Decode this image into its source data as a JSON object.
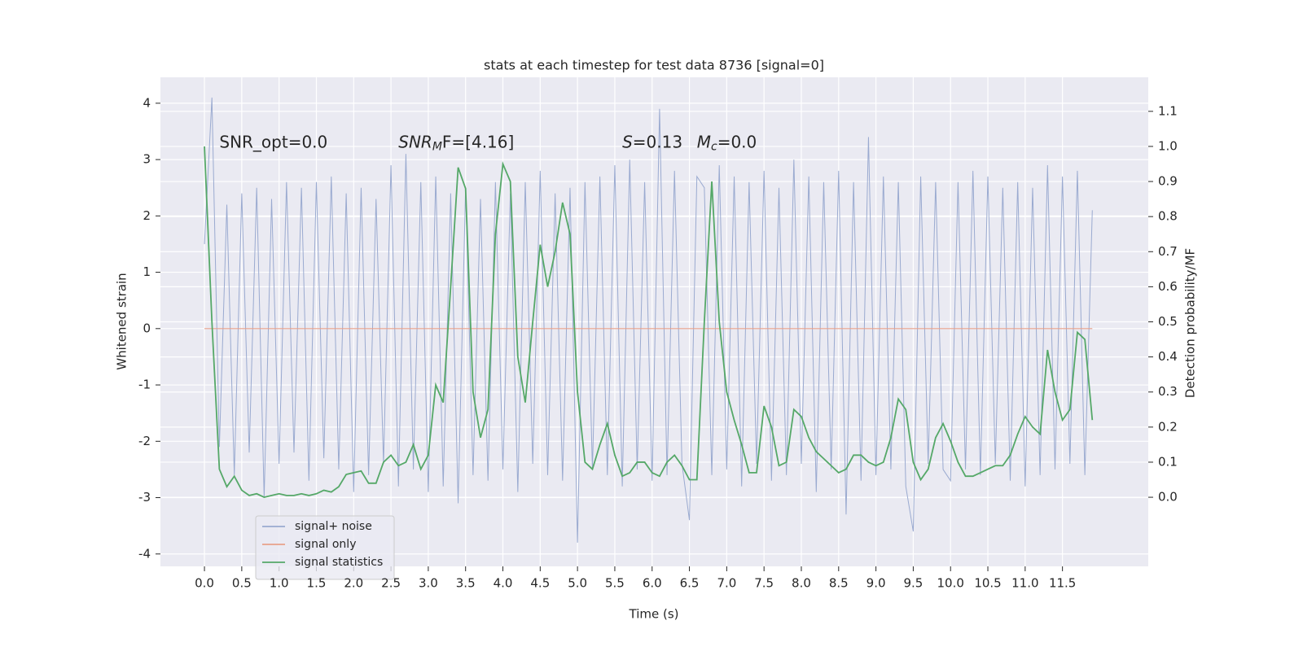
{
  "chart_data": {
    "type": "line",
    "title": "stats at each timestep for test data 8736 [signal=0]",
    "xlabel": "Time (s)",
    "ylabel": "Whitened strain",
    "y2label": "Detection probability/MF",
    "xlim": [
      -0.59,
      12.65
    ],
    "ylim": [
      -4.22,
      4.46
    ],
    "y2lim": [
      -0.197,
      1.197
    ],
    "xticks": [
      {
        "value": 0,
        "label": "0.0"
      },
      0.5,
      {
        "value": 1,
        "label": "1.0"
      },
      1.5,
      {
        "value": 2,
        "label": "2.0"
      },
      2.5,
      {
        "value": 3,
        "label": "3.0"
      },
      3.5,
      {
        "value": 4,
        "label": "4.0"
      },
      4.5,
      {
        "value": 5,
        "label": "5.0"
      },
      5.5,
      {
        "value": 6,
        "label": "6.0"
      },
      6.5,
      {
        "value": 7,
        "label": "7.0"
      },
      7.5,
      {
        "value": 8,
        "label": "8.0"
      },
      8.5,
      {
        "value": 9,
        "label": "9.0"
      },
      9.5,
      {
        "value": 10,
        "label": "10.0"
      },
      10.5,
      {
        "value": 11,
        "label": "11.0"
      },
      11.5
    ],
    "yticks": [
      -4,
      -3,
      -2,
      -1,
      0,
      1,
      2,
      3,
      4
    ],
    "y2ticks": [
      {
        "value": 0,
        "label": "0.0"
      },
      0.1,
      0.2,
      0.3,
      0.4,
      0.5,
      0.6,
      0.7,
      0.8,
      0.9,
      {
        "value": 1,
        "label": "1.0"
      },
      1.1
    ],
    "grid": true,
    "legend": "lower left",
    "annotations": [
      [
        "SNR_opt=0.0"
      ],
      [
        "SNR",
        "M",
        "F=[4.16]"
      ],
      [
        "S",
        "=0.13"
      ],
      [
        "M",
        "c",
        "=0.0"
      ]
    ],
    "x": [
      0,
      0.1,
      0.2,
      0.3,
      0.4,
      0.5,
      0.6,
      0.7,
      0.8,
      0.9,
      1,
      1.1,
      1.2,
      1.3,
      1.4,
      1.5,
      1.6,
      1.7,
      1.8,
      1.9,
      2,
      2.1,
      2.2,
      2.3,
      2.4,
      2.5,
      2.6,
      2.7,
      2.8,
      2.9,
      3,
      3.1,
      3.2,
      3.3,
      3.4,
      3.5,
      3.6,
      3.7,
      3.8,
      3.9,
      4,
      4.1,
      4.2,
      4.3,
      4.4,
      4.5,
      4.6,
      4.7,
      4.8,
      4.9,
      5,
      5.1,
      5.2,
      5.3,
      5.4,
      5.5,
      5.6,
      5.7,
      5.8,
      5.9,
      6,
      6.1,
      6.2,
      6.3,
      6.4,
      6.5,
      6.6,
      6.7,
      6.8,
      6.9,
      7,
      7.1,
      7.2,
      7.3,
      7.4,
      7.5,
      7.6,
      7.7,
      7.8,
      7.9,
      8,
      8.1,
      8.2,
      8.3,
      8.4,
      8.5,
      8.6,
      8.7,
      8.8,
      8.9,
      9,
      9.1,
      9.2,
      9.3,
      9.4,
      9.5,
      9.6,
      9.7,
      9.8,
      9.9,
      10,
      10.1,
      10.2,
      10.3,
      10.4,
      10.5,
      10.6,
      10.7,
      10.8,
      10.9,
      11,
      11.1,
      11.2,
      11.3,
      11.4,
      11.5,
      11.6,
      11.7,
      11.8,
      11.9
    ],
    "series": [
      {
        "name": "signal+ noise",
        "color": "#9aaad0",
        "values": [
          1.5,
          4.1,
          -2.1,
          2.2,
          -2.6,
          2.4,
          -2.2,
          2.5,
          -3.0,
          2.3,
          -2.4,
          2.6,
          -2.2,
          2.5,
          -2.7,
          2.6,
          -2.3,
          2.7,
          -2.5,
          2.4,
          -2.9,
          2.5,
          -2.6,
          2.3,
          -2.4,
          2.9,
          -2.8,
          3.1,
          -2.5,
          2.6,
          -2.9,
          2.7,
          -2.8,
          2.4,
          -3.1,
          2.5,
          -2.6,
          2.3,
          -2.7,
          2.6,
          -2.5,
          2.4,
          -2.9,
          2.6,
          -2.4,
          2.8,
          -2.6,
          2.4,
          -2.7,
          2.5,
          -3.8,
          2.6,
          -2.5,
          2.7,
          -2.6,
          2.9,
          -2.8,
          3.0,
          -2.5,
          2.6,
          -2.7,
          3.9,
          -2.6,
          2.8,
          -2.4,
          -3.4,
          2.7,
          2.5,
          -2.6,
          2.9,
          -2.5,
          2.7,
          -2.8,
          2.6,
          -2.4,
          2.8,
          -2.7,
          2.5,
          -2.6,
          3.0,
          -2.4,
          2.7,
          -2.9,
          2.6,
          -2.5,
          2.8,
          -3.3,
          2.6,
          -2.7,
          3.4,
          -2.6,
          2.7,
          -2.5,
          2.6,
          -2.8,
          -3.6,
          2.7,
          -2.4,
          2.6,
          -2.5,
          -2.7,
          2.6,
          -2.5,
          2.8,
          -2.6,
          2.7,
          -2.4,
          2.5,
          -2.7,
          2.6,
          -2.8,
          2.5,
          -2.6,
          2.9,
          -2.5,
          2.7,
          -2.4,
          2.8,
          -2.6,
          2.1
        ]
      },
      {
        "name": "signal only",
        "color": "#e8a08a",
        "values": [
          0,
          0,
          0,
          0,
          0,
          0,
          0,
          0,
          0,
          0,
          0,
          0,
          0,
          0,
          0,
          0,
          0,
          0,
          0,
          0,
          0,
          0,
          0,
          0,
          0,
          0,
          0,
          0,
          0,
          0,
          0,
          0,
          0,
          0,
          0,
          0,
          0,
          0,
          0,
          0,
          0,
          0,
          0,
          0,
          0,
          0,
          0,
          0,
          0,
          0,
          0,
          0,
          0,
          0,
          0,
          0,
          0,
          0,
          0,
          0,
          0,
          0,
          0,
          0,
          0,
          0,
          0,
          0,
          0,
          0,
          0,
          0,
          0,
          0,
          0,
          0,
          0,
          0,
          0,
          0,
          0,
          0,
          0,
          0,
          0,
          0,
          0,
          0,
          0,
          0,
          0,
          0,
          0,
          0,
          0,
          0,
          0,
          0,
          0,
          0,
          0,
          0,
          0,
          0,
          0,
          0,
          0,
          0,
          0,
          0,
          0,
          0,
          0,
          0,
          0,
          0,
          0,
          0,
          0,
          0
        ]
      },
      {
        "name": "signal statistics",
        "color": "#55a868",
        "axis": "y2",
        "values": [
          1.0,
          0.5,
          0.08,
          0.03,
          0.06,
          0.02,
          0.005,
          0.01,
          0.0,
          0.005,
          0.01,
          0.005,
          0.005,
          0.01,
          0.005,
          0.01,
          0.02,
          0.015,
          0.03,
          0.065,
          0.07,
          0.075,
          0.04,
          0.04,
          0.1,
          0.12,
          0.09,
          0.1,
          0.15,
          0.08,
          0.12,
          0.32,
          0.27,
          0.6,
          0.94,
          0.88,
          0.3,
          0.17,
          0.25,
          0.75,
          0.95,
          0.9,
          0.4,
          0.27,
          0.5,
          0.72,
          0.6,
          0.7,
          0.84,
          0.75,
          0.3,
          0.1,
          0.08,
          0.15,
          0.21,
          0.12,
          0.06,
          0.07,
          0.1,
          0.1,
          0.07,
          0.06,
          0.1,
          0.12,
          0.09,
          0.05,
          0.05,
          0.5,
          0.9,
          0.5,
          0.3,
          0.22,
          0.15,
          0.07,
          0.07,
          0.26,
          0.2,
          0.09,
          0.1,
          0.25,
          0.23,
          0.17,
          0.13,
          0.11,
          0.09,
          0.07,
          0.08,
          0.12,
          0.12,
          0.1,
          0.09,
          0.1,
          0.17,
          0.28,
          0.25,
          0.1,
          0.05,
          0.08,
          0.17,
          0.21,
          0.16,
          0.1,
          0.06,
          0.06,
          0.07,
          0.08,
          0.09,
          0.09,
          0.12,
          0.18,
          0.23,
          0.2,
          0.18,
          0.42,
          0.3,
          0.22,
          0.25,
          0.47,
          0.45,
          0.22
        ]
      }
    ]
  }
}
